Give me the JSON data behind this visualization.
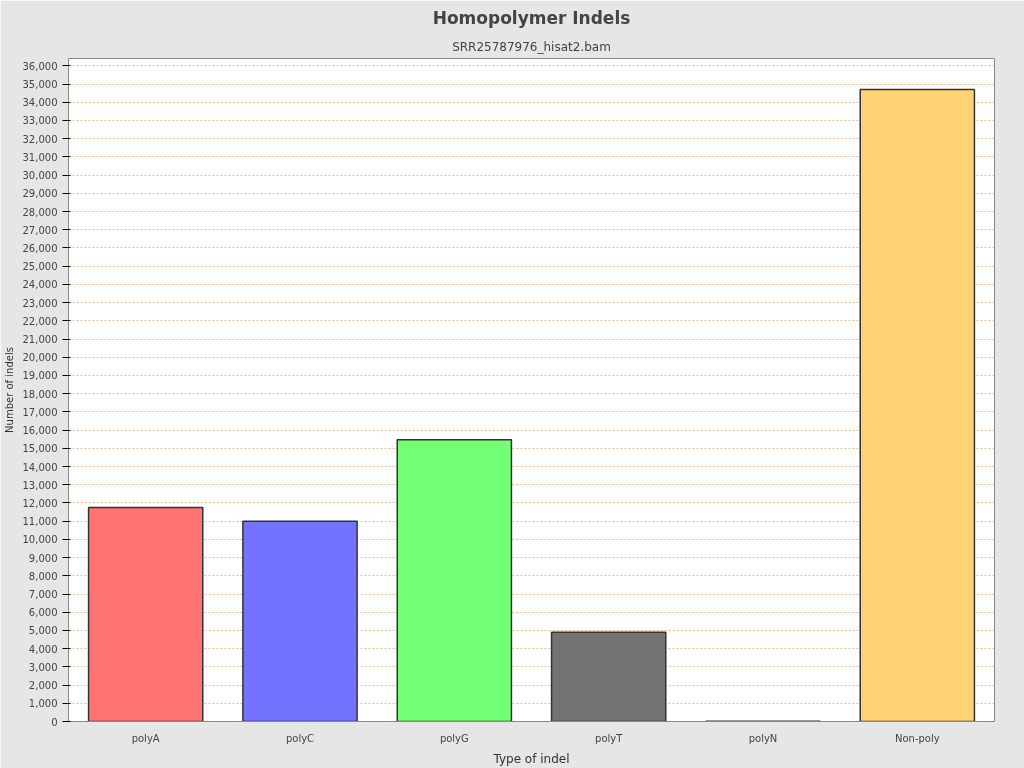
{
  "chart_data": {
    "type": "bar",
    "title": "Homopolymer Indels",
    "subtitle": "SRR25787976_hisat2.bam",
    "xlabel": "Type of indel",
    "ylabel": "Number of indels",
    "categories": [
      "polyA",
      "polyC",
      "polyG",
      "polyT",
      "polyN",
      "Non-poly"
    ],
    "values": [
      11750,
      11000,
      15470,
      4900,
      20,
      34700
    ],
    "colors": [
      "#ff7373",
      "#7373ff",
      "#73ff73",
      "#737373",
      "#737373",
      "#ffd273"
    ],
    "ylim": [
      0,
      36400
    ],
    "yticks": [
      {
        "value": 0,
        "label": "0"
      },
      {
        "value": 1000,
        "label": "1,000"
      },
      {
        "value": 2000,
        "label": "2,000"
      },
      {
        "value": 3000,
        "label": "3,000"
      },
      {
        "value": 4000,
        "label": "4,000"
      },
      {
        "value": 5000,
        "label": "5,000"
      },
      {
        "value": 6000,
        "label": "6,000"
      },
      {
        "value": 7000,
        "label": "7,000"
      },
      {
        "value": 8000,
        "label": "8,000"
      },
      {
        "value": 9000,
        "label": "9,000"
      },
      {
        "value": 10000,
        "label": "10,000"
      },
      {
        "value": 11000,
        "label": "11,000"
      },
      {
        "value": 12000,
        "label": "12,000"
      },
      {
        "value": 13000,
        "label": "13,000"
      },
      {
        "value": 14000,
        "label": "14,000"
      },
      {
        "value": 15000,
        "label": "15,000"
      },
      {
        "value": 16000,
        "label": "16,000"
      },
      {
        "value": 17000,
        "label": "17,000"
      },
      {
        "value": 18000,
        "label": "18,000"
      },
      {
        "value": 19000,
        "label": "19,000"
      },
      {
        "value": 20000,
        "label": "20,000"
      },
      {
        "value": 21000,
        "label": "21,000"
      },
      {
        "value": 22000,
        "label": "22,000"
      },
      {
        "value": 23000,
        "label": "23,000"
      },
      {
        "value": 24000,
        "label": "24,000"
      },
      {
        "value": 25000,
        "label": "25,000"
      },
      {
        "value": 26000,
        "label": "26,000"
      },
      {
        "value": 27000,
        "label": "27,000"
      },
      {
        "value": 28000,
        "label": "28,000"
      },
      {
        "value": 29000,
        "label": "29,000"
      },
      {
        "value": 30000,
        "label": "30,000"
      },
      {
        "value": 31000,
        "label": "31,000"
      },
      {
        "value": 32000,
        "label": "32,000"
      },
      {
        "value": 33000,
        "label": "33,000"
      },
      {
        "value": 34000,
        "label": "34,000"
      },
      {
        "value": 35000,
        "label": "35,000"
      },
      {
        "value": 36000,
        "label": "36,000"
      }
    ],
    "grid": "y"
  }
}
